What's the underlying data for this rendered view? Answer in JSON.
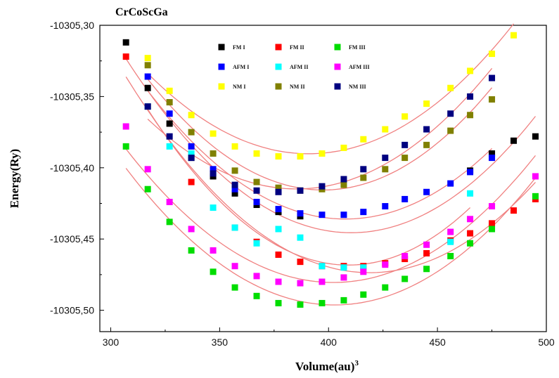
{
  "chart_data": {
    "type": "scatter",
    "title": "CrCoScGa",
    "xlabel": "Volume(au)",
    "xlabel_sup": "3",
    "ylabel": "Energy(Ry)",
    "xlim": [
      295,
      500
    ],
    "ylim": [
      -10305.515,
      -10305.3
    ],
    "x_ticks": [
      300,
      350,
      400,
      450,
      500
    ],
    "x_tick_labels": [
      "300",
      "350",
      "400",
      "450",
      "500"
    ],
    "y_ticks": [
      -10305.3,
      -10305.35,
      -10305.4,
      -10305.45,
      -10305.5
    ],
    "y_tick_labels": [
      "-10305,30",
      "-10305,35",
      "-10305,40",
      "-10305,45",
      "-10305,50"
    ],
    "grid": false,
    "legend_placement": "top-center",
    "fit_color": "#f08080",
    "series": [
      {
        "name": "FM I",
        "color": "#000000",
        "x": [
          307,
          317,
          327,
          337,
          347,
          357,
          367,
          377,
          387,
          465,
          475,
          485,
          495
        ],
        "y": [
          -10305.312,
          -10305.344,
          -10305.369,
          -10305.393,
          -10305.406,
          -10305.418,
          -10305.426,
          -10305.431,
          -10305.434,
          -10305.402,
          -10305.39,
          -10305.381,
          -10305.378
        ]
      },
      {
        "name": "FM II",
        "color": "#ff0000",
        "x": [
          307,
          317,
          337,
          357,
          367,
          377,
          387,
          397,
          407,
          416,
          426,
          435,
          445,
          456,
          465,
          475,
          485,
          495
        ],
        "y": [
          -10305.322,
          -10305.357,
          -10305.41,
          -10305.442,
          -10305.452,
          -10305.461,
          -10305.466,
          -10305.469,
          -10305.469,
          -10305.469,
          -10305.467,
          -10305.464,
          -10305.46,
          -10305.451,
          -10305.446,
          -10305.439,
          -10305.43,
          -10305.422
        ]
      },
      {
        "name": "FM III",
        "color": "#00dd00",
        "x": [
          307,
          317,
          327,
          337,
          347,
          357,
          367,
          377,
          387,
          397,
          407,
          416,
          426,
          435,
          445,
          456,
          465,
          475,
          495
        ],
        "y": [
          -10305.385,
          -10305.415,
          -10305.438,
          -10305.458,
          -10305.473,
          -10305.484,
          -10305.49,
          -10305.495,
          -10305.496,
          -10305.495,
          -10305.493,
          -10305.489,
          -10305.484,
          -10305.478,
          -10305.471,
          -10305.462,
          -10305.453,
          -10305.443,
          -10305.42
        ]
      },
      {
        "name": "AFM I",
        "color": "#0000ff",
        "x": [
          317,
          327,
          337,
          347,
          357,
          367,
          377,
          387,
          397,
          407,
          416,
          426,
          435,
          445,
          456,
          465,
          475
        ],
        "y": [
          -10305.336,
          -10305.362,
          -10305.385,
          -10305.401,
          -10305.415,
          -10305.424,
          -10305.429,
          -10305.432,
          -10305.433,
          -10305.433,
          -10305.431,
          -10305.427,
          -10305.422,
          -10305.417,
          -10305.411,
          -10305.403,
          -10305.393
        ]
      },
      {
        "name": "AFM II",
        "color": "#00ffff",
        "x": [
          317,
          327,
          337,
          347,
          357,
          367,
          377,
          387,
          397,
          407,
          416,
          456,
          465
        ],
        "y": [
          -10305.357,
          -10305.385,
          -10305.39,
          -10305.428,
          -10305.442,
          -10305.453,
          -10305.443,
          -10305.449,
          -10305.469,
          -10305.47,
          -10305.47,
          -10305.452,
          -10305.418
        ]
      },
      {
        "name": "AFM III",
        "color": "#ff00ff",
        "x": [
          307,
          317,
          327,
          337,
          347,
          357,
          367,
          377,
          387,
          397,
          407,
          416,
          426,
          435,
          445,
          456,
          465,
          475,
          495
        ],
        "y": [
          -10305.371,
          -10305.401,
          -10305.424,
          -10305.443,
          -10305.458,
          -10305.469,
          -10305.476,
          -10305.48,
          -10305.481,
          -10305.48,
          -10305.477,
          -10305.473,
          -10305.468,
          -10305.462,
          -10305.454,
          -10305.445,
          -10305.436,
          -10305.427,
          -10305.406
        ]
      },
      {
        "name": "NM I",
        "color": "#ffff00",
        "x": [
          317,
          327,
          337,
          347,
          357,
          367,
          377,
          387,
          397,
          407,
          416,
          426,
          435,
          445,
          456,
          465,
          475,
          485
        ],
        "y": [
          -10305.323,
          -10305.346,
          -10305.363,
          -10305.376,
          -10305.385,
          -10305.39,
          -10305.392,
          -10305.392,
          -10305.39,
          -10305.386,
          -10305.38,
          -10305.373,
          -10305.364,
          -10305.355,
          -10305.344,
          -10305.332,
          -10305.32,
          -10305.307
        ]
      },
      {
        "name": "NM II",
        "color": "#808000",
        "x": [
          317,
          327,
          337,
          347,
          357,
          367,
          377,
          387,
          397,
          407,
          416,
          426,
          435,
          445,
          456,
          465,
          475
        ],
        "y": [
          -10305.328,
          -10305.354,
          -10305.375,
          -10305.39,
          -10305.402,
          -10305.41,
          -10305.414,
          -10305.416,
          -10305.415,
          -10305.412,
          -10305.407,
          -10305.401,
          -10305.393,
          -10305.384,
          -10305.374,
          -10305.363,
          -10305.352
        ]
      },
      {
        "name": "NM III",
        "color": "#000080",
        "x": [
          317,
          327,
          337,
          347,
          357,
          367,
          377,
          387,
          397,
          407,
          416,
          426,
          435,
          445,
          456,
          465,
          475
        ],
        "y": [
          -10305.357,
          -10305.378,
          -10305.393,
          -10305.404,
          -10305.412,
          -10305.416,
          -10305.417,
          -10305.416,
          -10305.413,
          -10305.408,
          -10305.401,
          -10305.393,
          -10305.384,
          -10305.373,
          -10305.362,
          -10305.35,
          -10305.337
        ]
      }
    ]
  }
}
